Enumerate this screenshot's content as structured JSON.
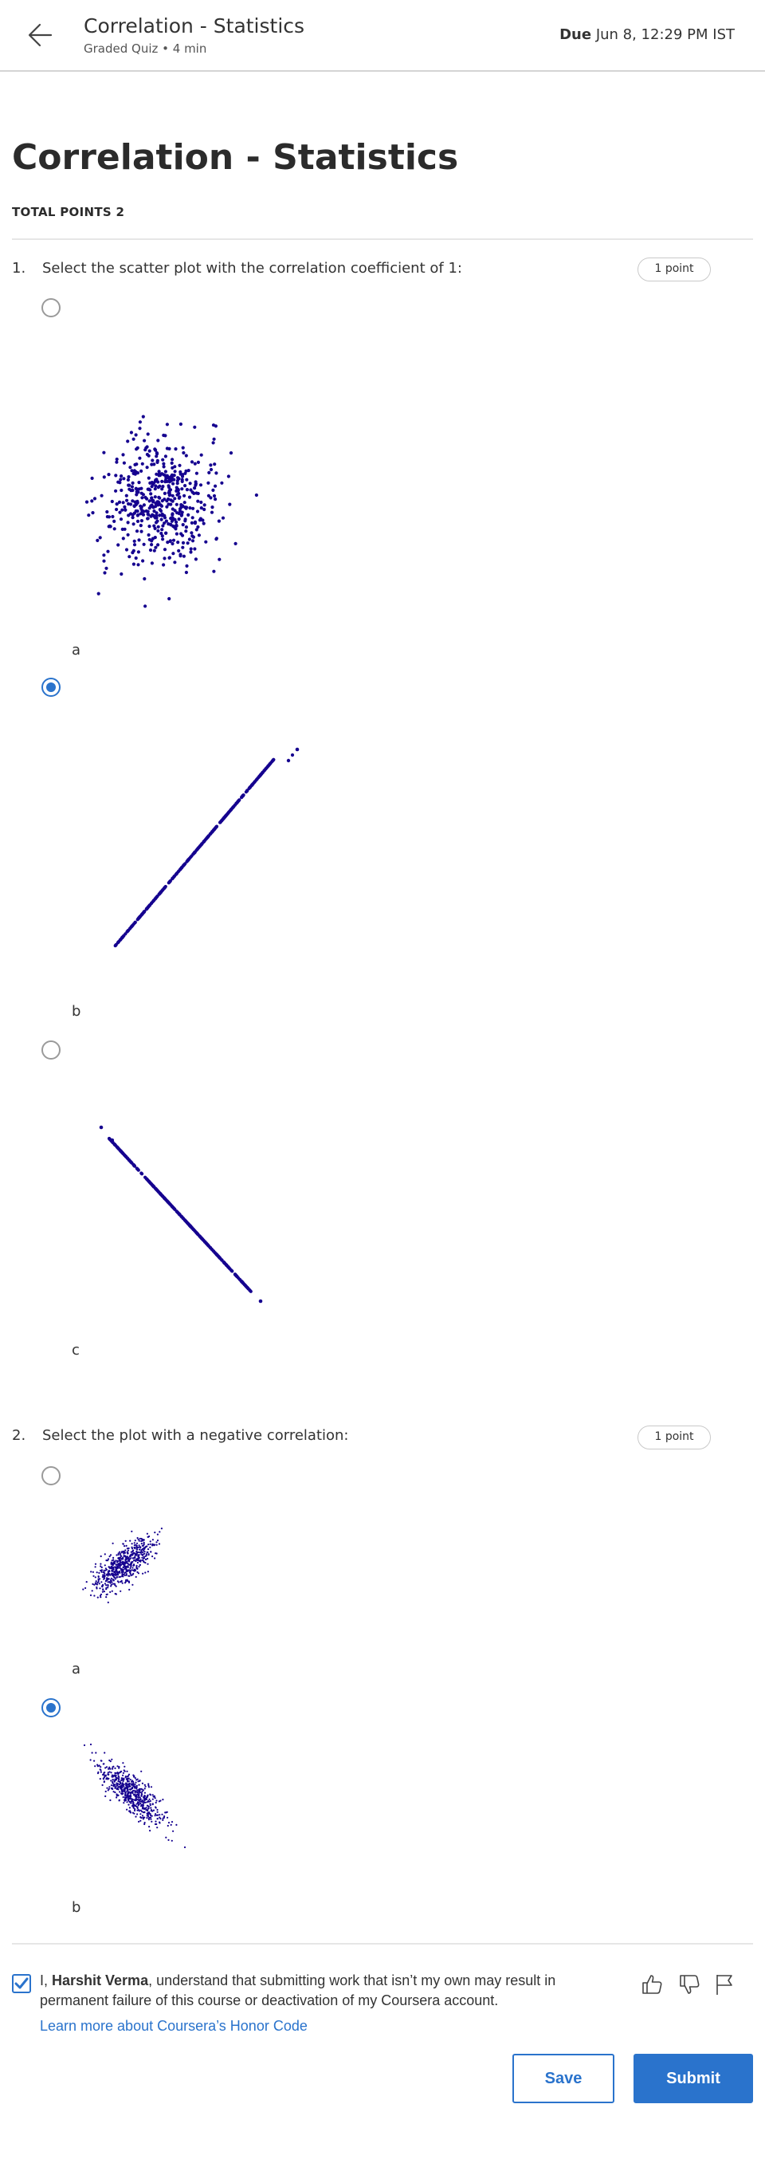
{
  "header": {
    "title": "Correlation - Statistics",
    "subtitle": "Graded Quiz • 4 min",
    "due_label": "Due",
    "due_value": "Jun 8, 12:29 PM IST"
  },
  "page": {
    "title": "Correlation - Statistics",
    "total_points": "TOTAL POINTS 2"
  },
  "questions": [
    {
      "number": "1.",
      "text": "Select the scatter plot with the correlation coefficient of 1:",
      "points": "1 point",
      "options": [
        {
          "label": "a",
          "selected": false,
          "plot": "cloud"
        },
        {
          "label": "b",
          "selected": true,
          "plot": "positive-line"
        },
        {
          "label": "c",
          "selected": false,
          "plot": "negative-line"
        }
      ]
    },
    {
      "number": "2.",
      "text": "Select the plot with a negative correlation:",
      "points": "1 point",
      "options": [
        {
          "label": "a",
          "selected": false,
          "plot": "positive-cluster"
        },
        {
          "label": "b",
          "selected": true,
          "plot": "negative-cluster"
        }
      ]
    }
  ],
  "honor": {
    "checked": true,
    "prefix": "I, ",
    "name": "Harshit Verma",
    "suffix": ", understand that submitting work that isn’t my own may result in permanent failure of this course or deactivation of my Coursera account.",
    "link": "Learn more about Coursera’s Honor Code"
  },
  "feedback_icons": [
    "thumbs-up-icon",
    "thumbs-down-icon",
    "flag-icon"
  ],
  "buttons": {
    "save": "Save",
    "submit": "Submit"
  },
  "colors": {
    "accent": "#2a73cc",
    "dot": "#15008f"
  }
}
